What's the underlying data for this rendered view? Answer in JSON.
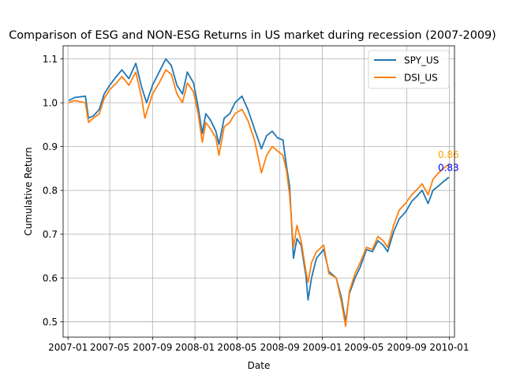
{
  "chart_data": {
    "type": "line",
    "title": "Comparison of ESG and NON-ESG Returns in US market during recession (2007-2009)",
    "xlabel": "Date",
    "ylabel": "Cumulative Return",
    "xlim": [
      "2006-12-18",
      "2010-01-16"
    ],
    "ylim": [
      0.465,
      1.13
    ],
    "grid": true,
    "legend_position": "top-right",
    "x_ticks": [
      "2007-01",
      "2007-05",
      "2007-09",
      "2008-01",
      "2008-05",
      "2008-09",
      "2009-01",
      "2009-05",
      "2009-09",
      "2010-01"
    ],
    "y_ticks": [
      0.5,
      0.6,
      0.7,
      0.8,
      0.9,
      1.0,
      1.1
    ],
    "series": [
      {
        "name": "SPY_US",
        "color": "#1f77b4",
        "points": [
          [
            "2007-01-03",
            1.005
          ],
          [
            "2007-01-20",
            1.012
          ],
          [
            "2007-02-20",
            1.015
          ],
          [
            "2007-03-01",
            0.965
          ],
          [
            "2007-03-15",
            0.97
          ],
          [
            "2007-04-01",
            0.985
          ],
          [
            "2007-04-15",
            1.02
          ],
          [
            "2007-05-01",
            1.04
          ],
          [
            "2007-05-20",
            1.06
          ],
          [
            "2007-06-05",
            1.075
          ],
          [
            "2007-06-25",
            1.055
          ],
          [
            "2007-07-15",
            1.09
          ],
          [
            "2007-08-01",
            1.035
          ],
          [
            "2007-08-15",
            1.0
          ],
          [
            "2007-09-01",
            1.04
          ],
          [
            "2007-09-20",
            1.07
          ],
          [
            "2007-10-09",
            1.1
          ],
          [
            "2007-10-25",
            1.085
          ],
          [
            "2007-11-10",
            1.04
          ],
          [
            "2007-11-26",
            1.02
          ],
          [
            "2007-12-10",
            1.07
          ],
          [
            "2007-12-28",
            1.045
          ],
          [
            "2008-01-10",
            0.99
          ],
          [
            "2008-01-22",
            0.93
          ],
          [
            "2008-02-01",
            0.975
          ],
          [
            "2008-02-15",
            0.96
          ],
          [
            "2008-03-01",
            0.935
          ],
          [
            "2008-03-10",
            0.905
          ],
          [
            "2008-03-25",
            0.965
          ],
          [
            "2008-04-10",
            0.975
          ],
          [
            "2008-04-25",
            1.0
          ],
          [
            "2008-05-15",
            1.015
          ],
          [
            "2008-06-01",
            0.985
          ],
          [
            "2008-06-20",
            0.94
          ],
          [
            "2008-07-10",
            0.895
          ],
          [
            "2008-07-25",
            0.925
          ],
          [
            "2008-08-10",
            0.935
          ],
          [
            "2008-08-25",
            0.92
          ],
          [
            "2008-09-10",
            0.915
          ],
          [
            "2008-09-20",
            0.855
          ],
          [
            "2008-09-29",
            0.81
          ],
          [
            "2008-10-10",
            0.645
          ],
          [
            "2008-10-20",
            0.69
          ],
          [
            "2008-11-01",
            0.675
          ],
          [
            "2008-11-15",
            0.605
          ],
          [
            "2008-11-21",
            0.55
          ],
          [
            "2008-12-01",
            0.6
          ],
          [
            "2008-12-15",
            0.645
          ],
          [
            "2009-01-05",
            0.665
          ],
          [
            "2009-01-20",
            0.615
          ],
          [
            "2009-02-10",
            0.6
          ],
          [
            "2009-02-25",
            0.555
          ],
          [
            "2009-03-09",
            0.5
          ],
          [
            "2009-03-20",
            0.565
          ],
          [
            "2009-04-05",
            0.6
          ],
          [
            "2009-04-20",
            0.625
          ],
          [
            "2009-05-08",
            0.665
          ],
          [
            "2009-05-25",
            0.66
          ],
          [
            "2009-06-10",
            0.685
          ],
          [
            "2009-06-25",
            0.675
          ],
          [
            "2009-07-08",
            0.66
          ],
          [
            "2009-07-25",
            0.705
          ],
          [
            "2009-08-10",
            0.735
          ],
          [
            "2009-08-28",
            0.75
          ],
          [
            "2009-09-15",
            0.775
          ],
          [
            "2009-09-28",
            0.785
          ],
          [
            "2009-10-15",
            0.8
          ],
          [
            "2009-11-01",
            0.77
          ],
          [
            "2009-11-15",
            0.8
          ],
          [
            "2009-12-01",
            0.81
          ],
          [
            "2009-12-15",
            0.82
          ],
          [
            "2009-12-31",
            0.83
          ]
        ]
      },
      {
        "name": "DSI_US",
        "color": "#ff7f0e",
        "points": [
          [
            "2007-01-03",
            1.0
          ],
          [
            "2007-01-20",
            1.005
          ],
          [
            "2007-02-20",
            1.0
          ],
          [
            "2007-03-01",
            0.955
          ],
          [
            "2007-03-15",
            0.965
          ],
          [
            "2007-04-01",
            0.975
          ],
          [
            "2007-04-15",
            1.01
          ],
          [
            "2007-05-01",
            1.03
          ],
          [
            "2007-05-20",
            1.045
          ],
          [
            "2007-06-05",
            1.06
          ],
          [
            "2007-06-25",
            1.04
          ],
          [
            "2007-07-15",
            1.07
          ],
          [
            "2007-08-01",
            1.01
          ],
          [
            "2007-08-10",
            0.965
          ],
          [
            "2007-09-01",
            1.02
          ],
          [
            "2007-09-20",
            1.045
          ],
          [
            "2007-10-09",
            1.075
          ],
          [
            "2007-10-25",
            1.065
          ],
          [
            "2007-11-10",
            1.02
          ],
          [
            "2007-11-26",
            1.0
          ],
          [
            "2007-12-10",
            1.045
          ],
          [
            "2007-12-28",
            1.025
          ],
          [
            "2008-01-10",
            0.975
          ],
          [
            "2008-01-22",
            0.91
          ],
          [
            "2008-02-01",
            0.955
          ],
          [
            "2008-02-15",
            0.94
          ],
          [
            "2008-03-01",
            0.92
          ],
          [
            "2008-03-10",
            0.88
          ],
          [
            "2008-03-25",
            0.945
          ],
          [
            "2008-04-10",
            0.955
          ],
          [
            "2008-04-25",
            0.975
          ],
          [
            "2008-05-15",
            0.985
          ],
          [
            "2008-06-01",
            0.96
          ],
          [
            "2008-06-20",
            0.915
          ],
          [
            "2008-07-10",
            0.84
          ],
          [
            "2008-07-25",
            0.88
          ],
          [
            "2008-08-10",
            0.9
          ],
          [
            "2008-08-25",
            0.89
          ],
          [
            "2008-09-10",
            0.88
          ],
          [
            "2008-09-20",
            0.845
          ],
          [
            "2008-09-29",
            0.79
          ],
          [
            "2008-10-10",
            0.67
          ],
          [
            "2008-10-20",
            0.72
          ],
          [
            "2008-11-01",
            0.685
          ],
          [
            "2008-11-15",
            0.615
          ],
          [
            "2008-11-21",
            0.59
          ],
          [
            "2008-12-01",
            0.635
          ],
          [
            "2008-12-15",
            0.66
          ],
          [
            "2009-01-05",
            0.675
          ],
          [
            "2009-01-20",
            0.61
          ],
          [
            "2009-02-10",
            0.6
          ],
          [
            "2009-02-25",
            0.545
          ],
          [
            "2009-03-09",
            0.49
          ],
          [
            "2009-03-20",
            0.57
          ],
          [
            "2009-04-05",
            0.61
          ],
          [
            "2009-04-20",
            0.635
          ],
          [
            "2009-05-08",
            0.67
          ],
          [
            "2009-05-25",
            0.665
          ],
          [
            "2009-06-10",
            0.695
          ],
          [
            "2009-06-25",
            0.685
          ],
          [
            "2009-07-08",
            0.67
          ],
          [
            "2009-07-25",
            0.72
          ],
          [
            "2009-08-10",
            0.755
          ],
          [
            "2009-08-28",
            0.77
          ],
          [
            "2009-09-15",
            0.79
          ],
          [
            "2009-09-28",
            0.8
          ],
          [
            "2009-10-15",
            0.815
          ],
          [
            "2009-11-01",
            0.79
          ],
          [
            "2009-11-15",
            0.825
          ],
          [
            "2009-12-01",
            0.84
          ],
          [
            "2009-12-15",
            0.85
          ],
          [
            "2009-12-31",
            0.86
          ]
        ]
      }
    ],
    "annotations": [
      {
        "text": "0.86",
        "x": "2009-12-31",
        "y": 0.86,
        "color": "orange"
      },
      {
        "text": "0.83",
        "x": "2009-12-31",
        "y": 0.83,
        "color": "blue"
      }
    ]
  }
}
